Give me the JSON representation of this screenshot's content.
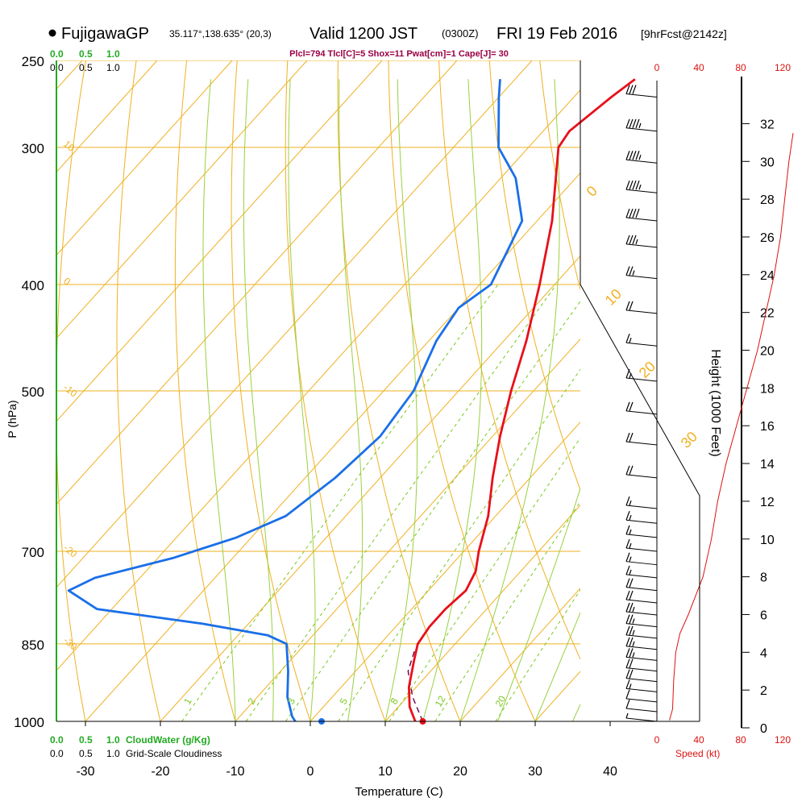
{
  "header": {
    "station": "FujigawaGP",
    "coords": "35.117°,138.635° (20,3)",
    "valid_prefix": "Valid 1200 JST",
    "utc": "(0300Z)",
    "date": "FRI 19 Feb 2016",
    "forecast": "[9hrFcst@2142z]",
    "indices": "Plcl=794 Tlcl[C]=5 Shox=11 Pwat[cm]=1 Cape[J]= 30"
  },
  "colors": {
    "temperature": "#e8101a",
    "dewpoint": "#1a6fe8",
    "isotherm": "#f0b020",
    "dry_adiabat": "#88cc22",
    "moist_adiabat": "#9ad040",
    "mixing_ratio": "#7ac820",
    "cloud_water": "#22aa22",
    "speed": "#dd1111",
    "indices": "#990044"
  },
  "chart_data": {
    "type": "skew-t",
    "xlabel": "Temperature (C)",
    "ylabel": "P (hPa)",
    "right_label": "Height (1000 Feet)",
    "x_ticks": [
      "-30",
      "-20",
      "-10",
      "0",
      "10",
      "20",
      "30",
      "40"
    ],
    "x_tick_values": [
      -30,
      -20,
      -10,
      0,
      10,
      20,
      30,
      40
    ],
    "p_ticks": [
      "250",
      "300",
      "400",
      "500",
      "700",
      "850",
      "1000"
    ],
    "p_tick_values": [
      250,
      300,
      400,
      500,
      700,
      850,
      1000
    ],
    "height_ticks": [
      "0",
      "2",
      "4",
      "6",
      "8",
      "10",
      "12",
      "14",
      "16",
      "18",
      "20",
      "22",
      "24",
      "26",
      "28",
      "30",
      "32"
    ],
    "height_tick_values": [
      0,
      2,
      4,
      6,
      8,
      10,
      12,
      14,
      16,
      18,
      20,
      22,
      24,
      26,
      28,
      30,
      32
    ],
    "speed_ticks": [
      "0",
      "40",
      "80",
      "120"
    ],
    "speed_tick_values": [
      0,
      40,
      80,
      120
    ],
    "speed_label": "Speed (kt)",
    "cloudwater_ticks": [
      "0.0",
      "0.5",
      "1.0"
    ],
    "cloudwater_label": "CloudWater (g/Kg)",
    "cloudiness_ticks": [
      "0.0",
      "0.5",
      "1.0"
    ],
    "cloudiness_label": "Grid-Scale Cloudiness",
    "theta_labels": [
      "-10",
      "0",
      "10",
      "20",
      "30"
    ],
    "mixing_ratio_labels": [
      "1",
      "2",
      "3",
      "5",
      "8",
      "12",
      "20"
    ],
    "temperature": [
      {
        "p": 1000,
        "t": 14.0
      },
      {
        "p": 970,
        "t": 11.5
      },
      {
        "p": 930,
        "t": 9.0
      },
      {
        "p": 880,
        "t": 6.5
      },
      {
        "p": 850,
        "t": 5.0
      },
      {
        "p": 820,
        "t": 4.5
      },
      {
        "p": 790,
        "t": 4.5
      },
      {
        "p": 760,
        "t": 5.0
      },
      {
        "p": 730,
        "t": 4.0
      },
      {
        "p": 700,
        "t": 2.0
      },
      {
        "p": 650,
        "t": -1.0
      },
      {
        "p": 600,
        "t": -5.0
      },
      {
        "p": 550,
        "t": -9.0
      },
      {
        "p": 500,
        "t": -13.0
      },
      {
        "p": 450,
        "t": -17.0
      },
      {
        "p": 400,
        "t": -22.0
      },
      {
        "p": 350,
        "t": -28.0
      },
      {
        "p": 300,
        "t": -36.0
      },
      {
        "p": 290,
        "t": -36.5
      },
      {
        "p": 270,
        "t": -35.0
      },
      {
        "p": 260,
        "t": -34.0
      }
    ],
    "dewpoint": [
      {
        "p": 1000,
        "t": -2.0
      },
      {
        "p": 990,
        "t": -3.0
      },
      {
        "p": 950,
        "t": -6.0
      },
      {
        "p": 900,
        "t": -9.0
      },
      {
        "p": 850,
        "t": -12.5
      },
      {
        "p": 835,
        "t": -16.0
      },
      {
        "p": 815,
        "t": -26.0
      },
      {
        "p": 790,
        "t": -42.0
      },
      {
        "p": 760,
        "t": -48.0
      },
      {
        "p": 740,
        "t": -46.0
      },
      {
        "p": 710,
        "t": -38.0
      },
      {
        "p": 680,
        "t": -32.0
      },
      {
        "p": 650,
        "t": -28.0
      },
      {
        "p": 600,
        "t": -26.0
      },
      {
        "p": 550,
        "t": -25.0
      },
      {
        "p": 500,
        "t": -26.0
      },
      {
        "p": 450,
        "t": -29.0
      },
      {
        "p": 420,
        "t": -30.0
      },
      {
        "p": 400,
        "t": -28.5
      },
      {
        "p": 350,
        "t": -32.0
      },
      {
        "p": 320,
        "t": -38.0
      },
      {
        "p": 300,
        "t": -44.0
      },
      {
        "p": 270,
        "t": -50.0
      },
      {
        "p": 260,
        "t": -52.0
      }
    ],
    "parcel": [
      {
        "p": 1000,
        "t": 15.0
      },
      {
        "p": 950,
        "t": 10.7
      },
      {
        "p": 900,
        "t": 7.0
      },
      {
        "p": 860,
        "t": 5.3
      }
    ],
    "surface_temp": 15.0,
    "surface_dewpoint": 1.5,
    "wind_levels_hpa": [
      270,
      290,
      310,
      330,
      350,
      370,
      395,
      425,
      455,
      490,
      525,
      560,
      600,
      640,
      660,
      680,
      700,
      720,
      740,
      760,
      780,
      800,
      820,
      840,
      860,
      880,
      900,
      920,
      940,
      960,
      980,
      1000
    ],
    "wind_speed_kt": [
      30,
      45,
      45,
      45,
      40,
      35,
      25,
      20,
      15,
      15,
      20,
      20,
      20,
      15,
      15,
      15,
      15,
      15,
      15,
      20,
      20,
      25,
      25,
      25,
      25,
      25,
      20,
      20,
      15,
      10,
      10,
      5
    ],
    "speed_profile": [
      {
        "h": 0.4,
        "s": 12
      },
      {
        "h": 1.0,
        "s": 15
      },
      {
        "h": 2.5,
        "s": 16
      },
      {
        "h": 4.0,
        "s": 18
      },
      {
        "h": 5.0,
        "s": 22
      },
      {
        "h": 6.0,
        "s": 30
      },
      {
        "h": 8.0,
        "s": 44
      },
      {
        "h": 10.0,
        "s": 52
      },
      {
        "h": 12.0,
        "s": 58
      },
      {
        "h": 14.0,
        "s": 66
      },
      {
        "h": 16.0,
        "s": 76
      },
      {
        "h": 18.0,
        "s": 86
      },
      {
        "h": 20.0,
        "s": 96
      },
      {
        "h": 22.0,
        "s": 104
      },
      {
        "h": 24.0,
        "s": 112
      },
      {
        "h": 26.0,
        "s": 118
      },
      {
        "h": 28.0,
        "s": 122
      },
      {
        "h": 30.0,
        "s": 126
      },
      {
        "h": 31.5,
        "s": 130
      }
    ]
  }
}
